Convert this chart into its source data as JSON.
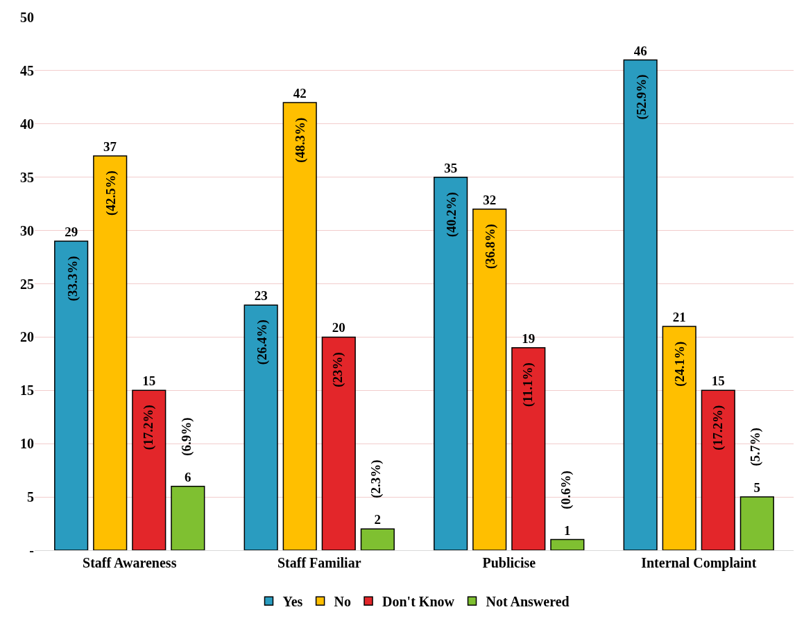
{
  "chart_data": {
    "type": "bar",
    "categories": [
      "Staff Awareness",
      "Staff Familiar",
      "Publicise",
      "Internal Complaint"
    ],
    "series": [
      {
        "name": "Yes",
        "color": "#2a9cc0",
        "values": [
          29,
          23,
          35,
          46
        ]
      },
      {
        "name": "No",
        "color": "#ffbf00",
        "values": [
          37,
          42,
          32,
          21
        ]
      },
      {
        "name": "Don't Know",
        "color": "#e3262a",
        "values": [
          15,
          20,
          19,
          15
        ]
      },
      {
        "name": "Not Answered",
        "color": "#7fc031",
        "values": [
          6,
          2,
          1,
          5
        ]
      }
    ],
    "annotations": [
      "(33.3%)",
      "(26.4%)",
      "(40.2%)",
      "(52.9%)",
      "(42.5%)",
      "(48.3%)",
      "(36.8%)",
      "(24.1%)",
      "(17.2%)",
      "(23%)",
      "(11.1%)",
      "(17.2%)",
      "(6.9%)",
      "(2.3%)",
      "(0.6%)",
      "(5.7%)"
    ],
    "ylim": [
      0,
      50
    ],
    "yticks": [
      {
        "value": 0,
        "label": "-"
      },
      5,
      10,
      15,
      20,
      25,
      30,
      35,
      40,
      45,
      50
    ],
    "grid": "y",
    "legend": "bottom",
    "data_labels": true
  }
}
